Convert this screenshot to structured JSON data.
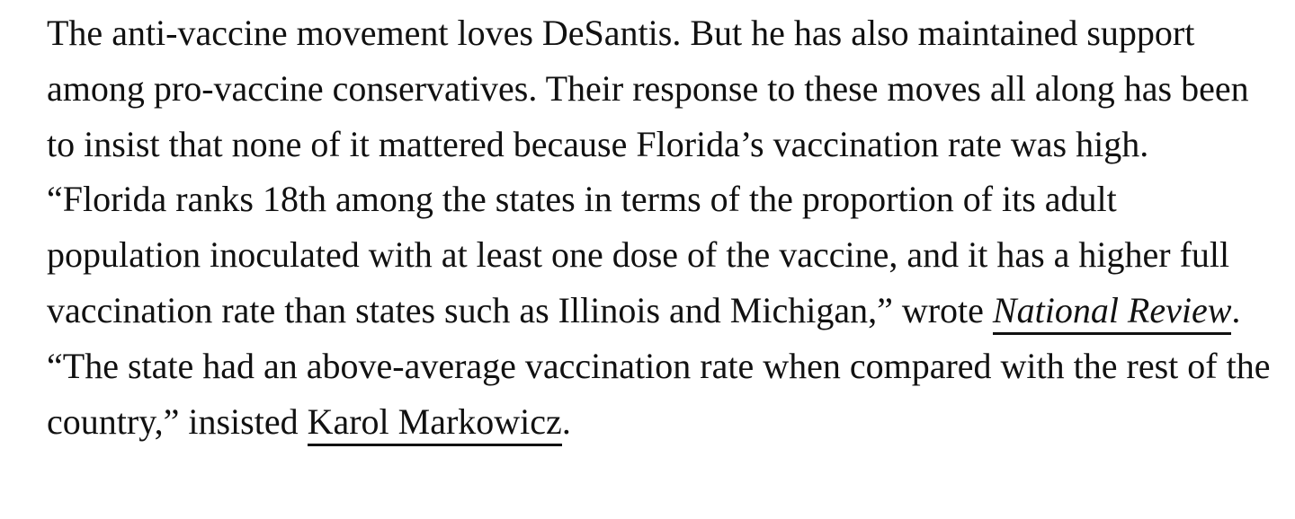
{
  "article": {
    "text_before_link_1": "The anti-vaccine movement loves DeSantis. But he has also maintained support among pro-vaccine conservatives. Their response to these moves all along has been to insist that none of it mattered because Florida’s vaccination rate was high. “Florida ranks 18th among the states in terms of the proportion of its adult population inoculated with at least one dose of the vaccine, and it has a higher full vaccination rate than states such as Illinois and Michigan,” wrote ",
    "link_1": "National Review",
    "text_between_links": ". “The state had an above-average vaccination rate when compared with the rest of the country,” insisted ",
    "link_2": "Karol Markowicz",
    "text_after_link_2": "."
  }
}
